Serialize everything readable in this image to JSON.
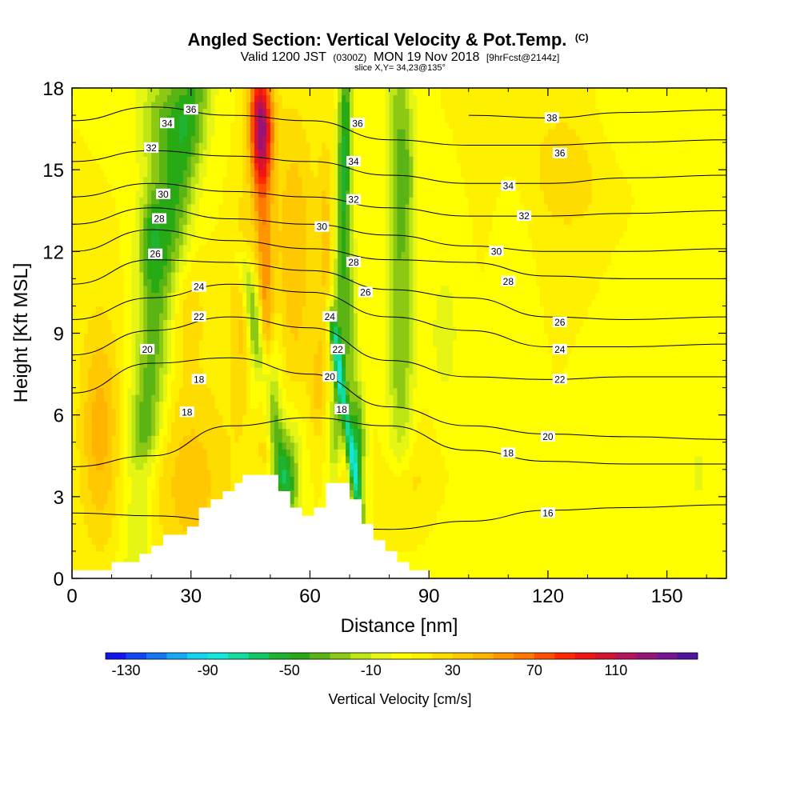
{
  "header": {
    "title": "Angled Section: Vertical Velocity & Pot.Temp.",
    "title_unit": "(C)",
    "valid_text": "Valid 1200 JST",
    "valid_utc": "(0300Z)",
    "valid_date": "MON 19 Nov 2018",
    "forecast": "[9hrFcst@2144z]",
    "slice": "slice X,Y= 34,23@135°"
  },
  "chart_data": {
    "type": "heatmap",
    "xlabel": "Distance [nm]",
    "ylabel": "Height [Kft MSL]",
    "xlim": [
      0,
      165
    ],
    "ylim": [
      0,
      18
    ],
    "xticks": [
      0,
      30,
      60,
      90,
      120,
      150
    ],
    "yticks": [
      0,
      3,
      6,
      9,
      12,
      15,
      18
    ],
    "colorbar": {
      "label": "Vertical Velocity [cm/s]",
      "tick_values": [
        "-130",
        "-90",
        "-50",
        "-10",
        "30",
        "70",
        "110"
      ],
      "range": [
        -140,
        150
      ],
      "colors": [
        "#1414f0",
        "#1446f5",
        "#1478f5",
        "#14aaf5",
        "#14d2f0",
        "#14e6dc",
        "#14dca0",
        "#14c864",
        "#1eb432",
        "#28aa14",
        "#5ab414",
        "#8cc814",
        "#bee614",
        "#e6f514",
        "#ffff00",
        "#fff000",
        "#ffdc00",
        "#ffc800",
        "#ffb400",
        "#ff9600",
        "#ff7800",
        "#ff5000",
        "#ff2800",
        "#f01414",
        "#d21432",
        "#b4145a",
        "#961478",
        "#781496",
        "#5014a0"
      ]
    },
    "velocity_field": {
      "background_cm_s": 10,
      "features": [
        {
          "x": 7,
          "z": 5.5,
          "w": 5,
          "h": 4,
          "value": 35
        },
        {
          "x": 30,
          "z": 3.5,
          "w": 10,
          "h": 4,
          "value": 25
        },
        {
          "x": 48,
          "z": 16.5,
          "w": 3,
          "h": 2,
          "value": 75
        },
        {
          "x": 56,
          "z": 12,
          "w": 5,
          "h": 5,
          "value": 30
        },
        {
          "x": 25,
          "z": 17,
          "w": 8,
          "h": 2,
          "value": -35
        },
        {
          "x": 23,
          "z": 14,
          "w": 5,
          "h": 3,
          "value": -25
        },
        {
          "x": 20,
          "z": 12,
          "w": 3,
          "h": 2,
          "value": -20
        },
        {
          "x": 28,
          "z": 10,
          "w": 5,
          "h": 2,
          "value": 20
        },
        {
          "x": 43,
          "z": 10,
          "w": 3,
          "h": 4,
          "value": 25
        },
        {
          "x": 51,
          "z": 7,
          "w": 2,
          "h": 3,
          "value": -40
        },
        {
          "x": 55,
          "z": 4,
          "w": 3,
          "h": 2,
          "value": -40
        },
        {
          "x": 46,
          "z": 9,
          "w": 2,
          "h": 3,
          "value": -20
        },
        {
          "x": 69,
          "z": 15,
          "w": 2,
          "h": 4,
          "value": -30
        },
        {
          "x": 70,
          "z": 9,
          "w": 2,
          "h": 3,
          "value": -35
        },
        {
          "x": 72,
          "z": 5,
          "w": 2,
          "h": 2,
          "value": -55
        },
        {
          "x": 64,
          "z": 12,
          "w": 2,
          "h": 4,
          "value": 25
        },
        {
          "x": 62,
          "z": 7,
          "w": 2,
          "h": 2,
          "value": 20
        },
        {
          "x": 67,
          "z": 3.5,
          "w": 2,
          "h": 1,
          "value": 25
        },
        {
          "x": 84,
          "z": 15,
          "w": 3,
          "h": 3,
          "value": -25
        },
        {
          "x": 83,
          "z": 9,
          "w": 3,
          "h": 4,
          "value": -15
        },
        {
          "x": 94,
          "z": 9,
          "w": 4,
          "h": 3,
          "value": -15
        },
        {
          "x": 85,
          "z": 4,
          "w": 6,
          "h": 2,
          "value": 15
        },
        {
          "x": 121,
          "z": 1,
          "w": 25,
          "h": 2,
          "value": -10
        },
        {
          "x": 112,
          "z": 11,
          "w": 4,
          "h": 4,
          "value": -10
        },
        {
          "x": 143,
          "z": 8,
          "w": 8,
          "h": 4,
          "value": -10
        },
        {
          "x": 158,
          "z": 4,
          "w": 6,
          "h": 4,
          "value": -10
        },
        {
          "x": 125,
          "z": 15,
          "w": 12,
          "h": 3,
          "value": 15
        },
        {
          "x": 140,
          "z": 17,
          "w": 10,
          "h": 2,
          "value": -10
        }
      ],
      "bands": [
        {
          "z0": 0,
          "x0": 16,
          "z1": 13,
          "x1": 20,
          "halfwidth": 4,
          "value": -20
        },
        {
          "z0": 5.5,
          "x0": 19,
          "z1": 18,
          "x1": 31,
          "halfwidth": 4.5,
          "value": -32
        },
        {
          "z0": 4,
          "x0": 53,
          "z1": 11,
          "x1": 44,
          "halfwidth": 2.2,
          "value": -40
        },
        {
          "z0": 3,
          "x0": 66,
          "z1": 18,
          "x1": 69,
          "halfwidth": 1.8,
          "value": -35
        },
        {
          "z0": 3,
          "x0": 72,
          "z1": 9,
          "x1": 66,
          "halfwidth": 1.3,
          "value": -60
        },
        {
          "z0": 5,
          "x0": 83,
          "z1": 18,
          "x1": 82,
          "halfwidth": 3.5,
          "value": -25
        },
        {
          "z0": 5,
          "x0": 50,
          "z1": 18,
          "x1": 47,
          "halfwidth": 2.5,
          "value": 45
        },
        {
          "z0": 0,
          "x0": 55,
          "z1": 5,
          "x1": 50,
          "halfwidth": 2,
          "value": -20
        }
      ]
    },
    "terrain": [
      [
        0,
        0.3
      ],
      [
        10,
        0.3
      ],
      [
        10,
        0.6
      ],
      [
        17,
        0.6
      ],
      [
        17,
        0.9
      ],
      [
        20,
        0.9
      ],
      [
        20,
        1.2
      ],
      [
        23,
        1.2
      ],
      [
        23,
        1.6
      ],
      [
        29,
        1.6
      ],
      [
        29,
        1.9
      ],
      [
        32,
        1.9
      ],
      [
        32,
        2.6
      ],
      [
        35,
        2.6
      ],
      [
        35,
        2.9
      ],
      [
        38,
        2.9
      ],
      [
        38,
        3.2
      ],
      [
        41,
        3.2
      ],
      [
        41,
        3.5
      ],
      [
        43,
        3.5
      ],
      [
        43,
        3.8
      ],
      [
        52,
        3.8
      ],
      [
        52,
        3.2
      ],
      [
        55,
        3.2
      ],
      [
        55,
        2.6
      ],
      [
        58,
        2.6
      ],
      [
        58,
        2.3
      ],
      [
        61,
        2.3
      ],
      [
        61,
        2.6
      ],
      [
        64,
        2.6
      ],
      [
        64,
        3.5
      ],
      [
        70,
        3.5
      ],
      [
        70,
        2.9
      ],
      [
        73,
        2.9
      ],
      [
        73,
        2.0
      ],
      [
        76,
        2.0
      ],
      [
        76,
        1.4
      ],
      [
        79,
        1.4
      ],
      [
        79,
        1.0
      ],
      [
        82,
        1.0
      ],
      [
        82,
        0.6
      ],
      [
        85,
        0.6
      ],
      [
        85,
        0.3
      ],
      [
        90,
        0.3
      ],
      [
        90,
        0.0
      ],
      [
        165,
        0.0
      ]
    ],
    "theta_contours": [
      {
        "label": "16",
        "points": [
          [
            0,
            2.4
          ],
          [
            20,
            2.3
          ],
          [
            40,
            2.1
          ],
          [
            60,
            1.9
          ],
          [
            80,
            1.8
          ],
          [
            100,
            2.1
          ],
          [
            120,
            2.5
          ],
          [
            140,
            2.6
          ],
          [
            165,
            2.7
          ]
        ]
      },
      {
        "label": "18",
        "points": [
          [
            0,
            4.1
          ],
          [
            20,
            4.5
          ],
          [
            40,
            5.6
          ],
          [
            60,
            5.9
          ],
          [
            80,
            5.6
          ],
          [
            100,
            4.7
          ],
          [
            120,
            4.3
          ],
          [
            140,
            4.2
          ],
          [
            165,
            4.2
          ]
        ]
      },
      {
        "label": "20",
        "points": [
          [
            0,
            6.8
          ],
          [
            20,
            7.9
          ],
          [
            40,
            8.1
          ],
          [
            60,
            7.5
          ],
          [
            80,
            6.3
          ],
          [
            100,
            5.6
          ],
          [
            120,
            5.3
          ],
          [
            140,
            5.2
          ],
          [
            165,
            5.1
          ]
        ]
      },
      {
        "label": "22",
        "points": [
          [
            0,
            8.2
          ],
          [
            20,
            9.1
          ],
          [
            40,
            9.6
          ],
          [
            60,
            9.2
          ],
          [
            80,
            8.0
          ],
          [
            100,
            7.4
          ],
          [
            120,
            7.3
          ],
          [
            140,
            7.4
          ],
          [
            165,
            7.4
          ]
        ]
      },
      {
        "label": "24",
        "points": [
          [
            0,
            9.5
          ],
          [
            20,
            10.3
          ],
          [
            40,
            10.8
          ],
          [
            60,
            10.5
          ],
          [
            80,
            9.6
          ],
          [
            100,
            9.1
          ],
          [
            120,
            8.5
          ],
          [
            140,
            8.5
          ],
          [
            165,
            8.6
          ]
        ]
      },
      {
        "label": "26",
        "points": [
          [
            0,
            10.8
          ],
          [
            20,
            11.7
          ],
          [
            40,
            11.6
          ],
          [
            60,
            11.3
          ],
          [
            80,
            10.6
          ],
          [
            100,
            10.3
          ],
          [
            120,
            9.6
          ],
          [
            140,
            9.5
          ],
          [
            165,
            9.6
          ]
        ]
      },
      {
        "label": "28",
        "points": [
          [
            0,
            12.0
          ],
          [
            20,
            12.8
          ],
          [
            40,
            12.4
          ],
          [
            60,
            12.1
          ],
          [
            80,
            11.7
          ],
          [
            100,
            11.6
          ],
          [
            120,
            11.1
          ],
          [
            140,
            11.0
          ],
          [
            165,
            11.0
          ]
        ]
      },
      {
        "label": "30",
        "points": [
          [
            0,
            13.0
          ],
          [
            20,
            13.6
          ],
          [
            40,
            13.2
          ],
          [
            60,
            13.0
          ],
          [
            80,
            12.6
          ],
          [
            100,
            12.2
          ],
          [
            120,
            12.0
          ],
          [
            140,
            12.0
          ],
          [
            165,
            12.1
          ]
        ]
      },
      {
        "label": "32",
        "points": [
          [
            0,
            14.0
          ],
          [
            20,
            14.5
          ],
          [
            40,
            14.2
          ],
          [
            60,
            14.0
          ],
          [
            80,
            13.6
          ],
          [
            100,
            13.3
          ],
          [
            120,
            13.3
          ],
          [
            140,
            13.4
          ],
          [
            165,
            13.5
          ]
        ]
      },
      {
        "label": "34",
        "points": [
          [
            0,
            15.3
          ],
          [
            20,
            15.7
          ],
          [
            40,
            15.5
          ],
          [
            60,
            15.3
          ],
          [
            80,
            14.8
          ],
          [
            100,
            14.5
          ],
          [
            120,
            14.5
          ],
          [
            140,
            14.7
          ],
          [
            165,
            14.8
          ]
        ]
      },
      {
        "label": "36",
        "points": [
          [
            0,
            16.8
          ],
          [
            20,
            17.3
          ],
          [
            40,
            17.0
          ],
          [
            60,
            16.8
          ],
          [
            80,
            16.1
          ],
          [
            100,
            15.9
          ],
          [
            120,
            15.9
          ],
          [
            140,
            16.0
          ],
          [
            165,
            16.1
          ]
        ]
      },
      {
        "label": "38",
        "points": [
          [
            100,
            17.0
          ],
          [
            120,
            16.9
          ],
          [
            140,
            17.1
          ],
          [
            165,
            17.2
          ]
        ]
      }
    ],
    "contour_labels": [
      {
        "text": "36",
        "x": 30,
        "y": 17.2
      },
      {
        "text": "34",
        "x": 24,
        "y": 16.7
      },
      {
        "text": "32",
        "x": 20,
        "y": 15.8
      },
      {
        "text": "30",
        "x": 23,
        "y": 14.1
      },
      {
        "text": "28",
        "x": 22,
        "y": 13.2
      },
      {
        "text": "26",
        "x": 21,
        "y": 11.9
      },
      {
        "text": "24",
        "x": 32,
        "y": 10.7
      },
      {
        "text": "22",
        "x": 32,
        "y": 9.6
      },
      {
        "text": "20",
        "x": 19,
        "y": 8.4
      },
      {
        "text": "18",
        "x": 32,
        "y": 7.3
      },
      {
        "text": "18",
        "x": 29,
        "y": 6.1
      },
      {
        "text": "36",
        "x": 72,
        "y": 16.7
      },
      {
        "text": "34",
        "x": 71,
        "y": 15.3
      },
      {
        "text": "32",
        "x": 71,
        "y": 13.9
      },
      {
        "text": "30",
        "x": 63,
        "y": 12.9
      },
      {
        "text": "28",
        "x": 71,
        "y": 11.6
      },
      {
        "text": "26",
        "x": 74,
        "y": 10.5
      },
      {
        "text": "24",
        "x": 65,
        "y": 9.6
      },
      {
        "text": "22",
        "x": 67,
        "y": 8.4
      },
      {
        "text": "20",
        "x": 65,
        "y": 7.4
      },
      {
        "text": "18",
        "x": 68,
        "y": 6.2
      },
      {
        "text": "38",
        "x": 121,
        "y": 16.9
      },
      {
        "text": "36",
        "x": 123,
        "y": 15.6
      },
      {
        "text": "34",
        "x": 110,
        "y": 14.4
      },
      {
        "text": "32",
        "x": 114,
        "y": 13.3
      },
      {
        "text": "30",
        "x": 107,
        "y": 12.0
      },
      {
        "text": "28",
        "x": 110,
        "y": 10.9
      },
      {
        "text": "26",
        "x": 123,
        "y": 9.4
      },
      {
        "text": "24",
        "x": 123,
        "y": 8.4
      },
      {
        "text": "22",
        "x": 123,
        "y": 7.3
      },
      {
        "text": "20",
        "x": 120,
        "y": 5.2
      },
      {
        "text": "18",
        "x": 110,
        "y": 4.6
      },
      {
        "text": "16",
        "x": 120,
        "y": 2.4
      }
    ]
  }
}
